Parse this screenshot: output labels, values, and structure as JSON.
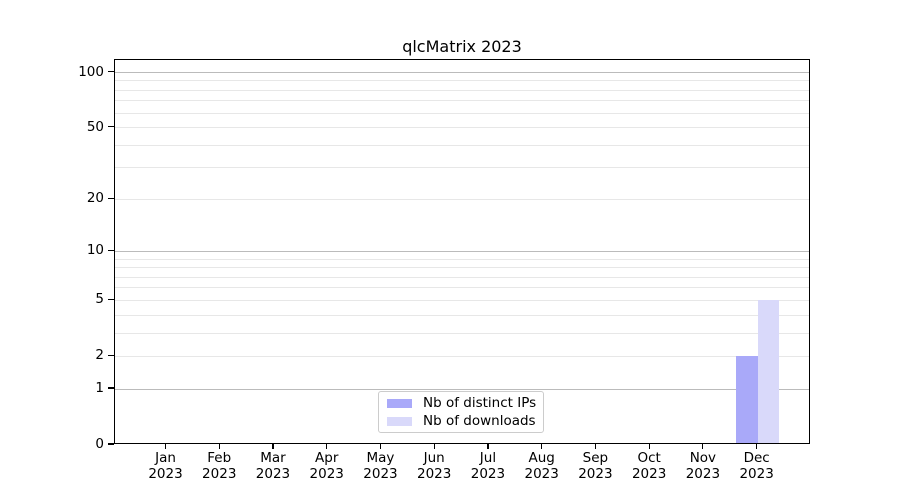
{
  "chart_data": {
    "type": "bar",
    "title": "qlcMatrix 2023",
    "categories": [
      "Jan",
      "Feb",
      "Mar",
      "Apr",
      "May",
      "Jun",
      "Jul",
      "Aug",
      "Sep",
      "Oct",
      "Nov",
      "Dec"
    ],
    "tick_year": "2023",
    "series": [
      {
        "name": "Nb of distinct IPs",
        "color": "#a9a9f9",
        "values": [
          0,
          0,
          0,
          0,
          0,
          0,
          0,
          0,
          0,
          0,
          0,
          2
        ]
      },
      {
        "name": "Nb of downloads",
        "color": "#d9d9fa",
        "values": [
          0,
          0,
          0,
          0,
          0,
          0,
          0,
          0,
          0,
          0,
          0,
          5
        ]
      }
    ],
    "y_axis": {
      "scale": "log1p",
      "tick_labels": [
        0,
        1,
        2,
        5,
        10,
        20,
        50,
        100
      ],
      "top_value": 117,
      "ylim": [
        0,
        117
      ]
    },
    "grid": {
      "dark_lines": [
        1,
        10,
        100
      ],
      "dark_color": "#bbbbbb",
      "light_lines": [
        2,
        3,
        4,
        5,
        6,
        7,
        8,
        9,
        20,
        30,
        40,
        50,
        60,
        70,
        80,
        90
      ],
      "light_color": "#e7e7e7"
    },
    "legend": {
      "position": "lower-center"
    },
    "colors": {
      "axis": "#000000",
      "background": "#ffffff"
    }
  }
}
